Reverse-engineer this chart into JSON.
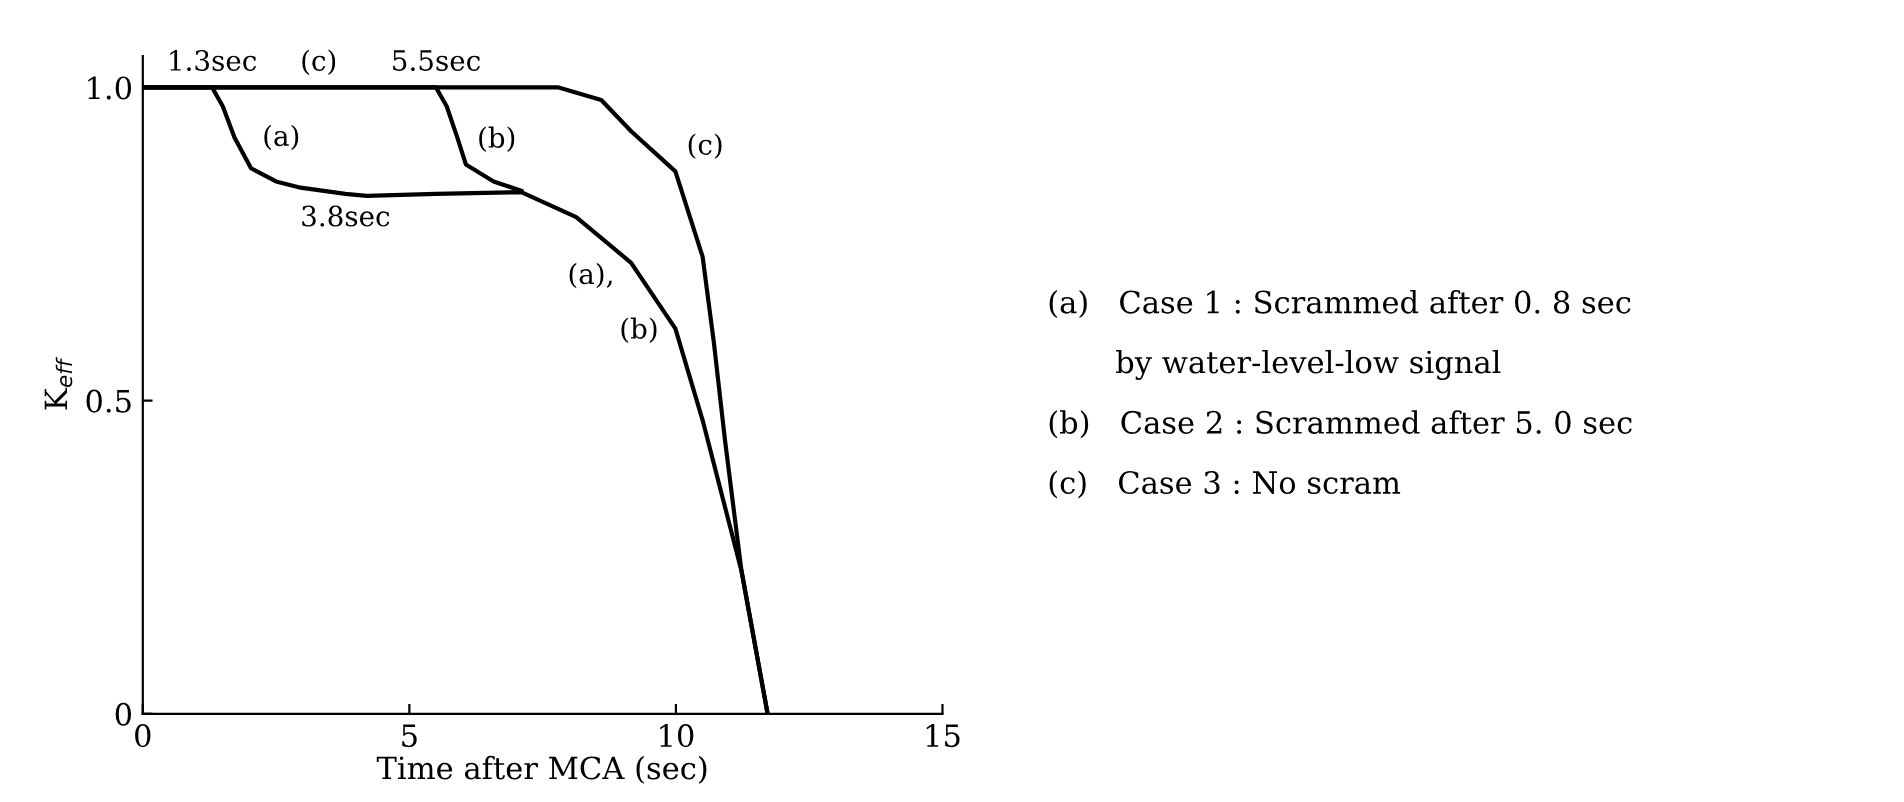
{
  "chart_data": {
    "type": "line",
    "xlabel": "Time after MCA (sec)",
    "ylabel": "K$_{eff}$",
    "xlim": [
      0,
      15
    ],
    "ylim": [
      0,
      1.05
    ],
    "xticks": [
      0,
      5,
      10,
      15
    ],
    "yticks": [
      0,
      0.5,
      {
        "value": 1.0,
        "label": "1.0"
      }
    ],
    "grid": false,
    "legend": false,
    "marker": "none",
    "line_style": "solid",
    "series": [
      {
        "color": "#000000",
        "x": [
          0,
          1.3,
          1.5,
          1.72,
          2.03,
          2.5,
          2.96,
          3.8,
          4.2,
          5.5,
          7.1,
          8.13,
          9.16,
          9.99,
          10.5,
          11.23,
          11.72
        ],
        "values": [
          1.0,
          1.0,
          0.97,
          0.92,
          0.871,
          0.85,
          0.84,
          0.83,
          0.827,
          0.83,
          0.833,
          0.793,
          0.72,
          0.615,
          0.469,
          0.228,
          0.0
        ]
      },
      {
        "color": "#000000",
        "x": [
          0,
          5.5,
          5.7,
          5.9,
          6.06,
          6.58,
          7.1
        ],
        "values": [
          1.0,
          1.0,
          0.97,
          0.92,
          0.877,
          0.85,
          0.835
        ]
      },
      {
        "color": "#000000",
        "x": [
          0,
          7.8,
          8.6,
          9.16,
          9.99,
          10.5,
          10.71,
          10.92,
          11.23,
          11.72
        ],
        "values": [
          1.0,
          1.0,
          0.98,
          0.93,
          0.866,
          0.73,
          0.594,
          0.437,
          0.228,
          0.0
        ]
      }
    ],
    "annotations": [
      {
        "text": "1.3sec",
        "x": 1.3,
        "y": 1.0
      },
      {
        "text": "(c)",
        "x": 3.3,
        "y": 1.0
      },
      {
        "text": "5.5sec",
        "x": 5.5,
        "y": 1.0
      },
      {
        "text": "(a)",
        "x": 2.03,
        "y": 0.871
      },
      {
        "text": "(b)",
        "x": 6.06,
        "y": 0.877
      },
      {
        "text": "3.8sec",
        "x": 3.8,
        "y": 0.83
      },
      {
        "text": "(c)",
        "x": 9.99,
        "y": 0.866
      },
      {
        "text": "(a),",
        "x": 9.16,
        "y": 0.72
      },
      {
        "text": "(b)",
        "x": 9.99,
        "y": 0.615
      },
      "(a)   Case 1 : Scrammed after 0. 8 sec",
      "       by water-level-low signal",
      "(b)   Case 2 : Scrammed after 5. 0 sec",
      "(c)   Case 3 : No scram"
    ]
  }
}
